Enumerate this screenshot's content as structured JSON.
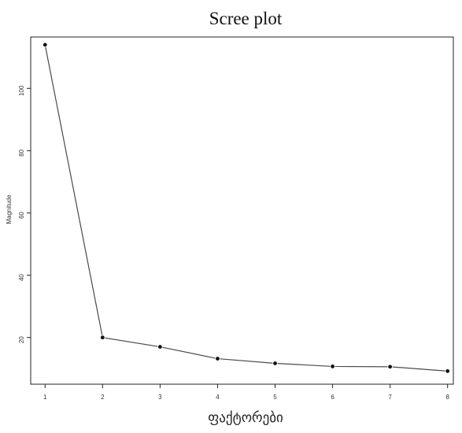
{
  "chart_data": {
    "type": "line",
    "title": "Scree plot",
    "xlabel": "ფაქტორები",
    "ylabel": "Magnitude",
    "x": [
      1,
      2,
      3,
      4,
      5,
      6,
      7,
      8
    ],
    "values": [
      114,
      20,
      17,
      13.2,
      11.7,
      10.7,
      10.6,
      9.2
    ],
    "x_ticks": [
      "1",
      "2",
      "3",
      "4",
      "5",
      "6",
      "7",
      "8"
    ],
    "y_ticks": [
      "20",
      "40",
      "60",
      "80",
      "100"
    ],
    "xlim": [
      0.75,
      8.1
    ],
    "ylim": [
      5,
      116.5
    ],
    "grid": false,
    "legend": "none",
    "colors": {
      "line": "#4a4a4a",
      "point": "#111111",
      "frame": "#222222"
    }
  }
}
